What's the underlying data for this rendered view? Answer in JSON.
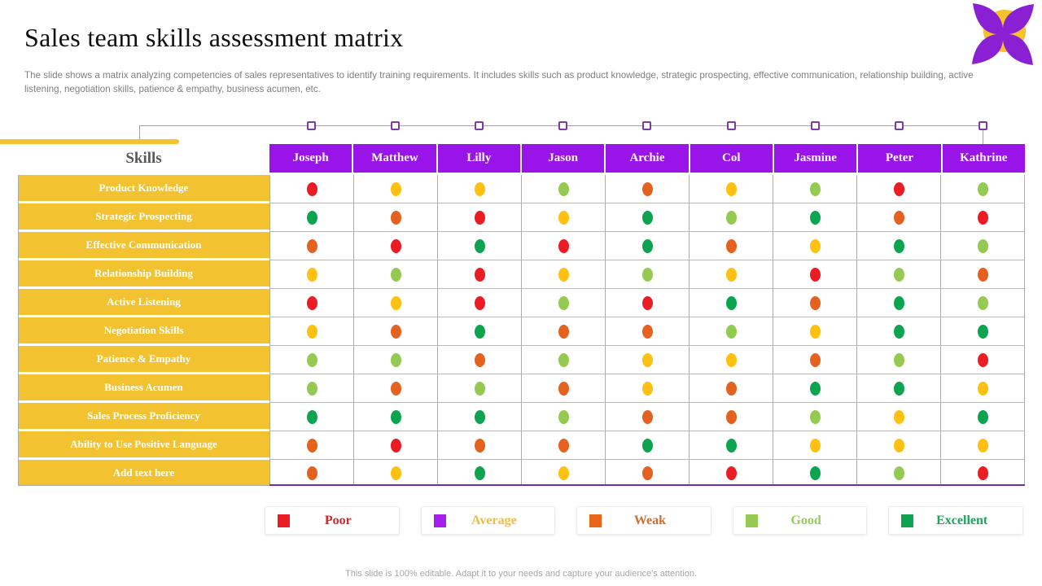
{
  "slide": {
    "title": "Sales team skills assessment matrix",
    "subtitle": "The slide shows a matrix analyzing competencies of sales representatives to identify training requirements. It includes skills such as product knowledge, strategic prospecting, effective communication, relationship building, active listening, negotiation skills, patience & empathy, business acumen, etc.",
    "footer": "This slide is 100% editable. Adapt it to your needs and capture your audience's attention."
  },
  "matrix": {
    "skills_header": "Skills"
  },
  "chart_data": {
    "type": "heatmap",
    "title": "Sales team skills assessment matrix",
    "columns": [
      "Joseph",
      "Matthew",
      "Lilly",
      "Jason",
      "Archie",
      "Col",
      "Jasmine",
      "Peter",
      "Kathrine"
    ],
    "rows": [
      "Product Knowledge",
      "Strategic Prospecting",
      "Effective Communication",
      "Relationship Building",
      "Active Listening",
      "Negotiation Skills",
      "Patience & Empathy",
      "Business Acumen",
      "Sales Process Proficiency",
      "Ability to Use Positive Language",
      "Add text here"
    ],
    "cell_colors": [
      [
        "red",
        "yellow",
        "yellow",
        "lightgreen",
        "orange",
        "yellow",
        "lightgreen",
        "red",
        "lightgreen"
      ],
      [
        "green",
        "orange",
        "red",
        "yellow",
        "green",
        "lightgreen",
        "green",
        "orange",
        "red"
      ],
      [
        "orange",
        "red",
        "green",
        "red",
        "green",
        "orange",
        "yellow",
        "green",
        "lightgreen"
      ],
      [
        "yellow",
        "lightgreen",
        "red",
        "yellow",
        "lightgreen",
        "yellow",
        "red",
        "lightgreen",
        "orange"
      ],
      [
        "red",
        "yellow",
        "red",
        "lightgreen",
        "red",
        "green",
        "orange",
        "green",
        "lightgreen"
      ],
      [
        "yellow",
        "orange",
        "green",
        "orange",
        "orange",
        "lightgreen",
        "yellow",
        "green",
        "green"
      ],
      [
        "lightgreen",
        "lightgreen",
        "orange",
        "lightgreen",
        "yellow",
        "yellow",
        "orange",
        "lightgreen",
        "red"
      ],
      [
        "lightgreen",
        "orange",
        "lightgreen",
        "orange",
        "yellow",
        "orange",
        "green",
        "green",
        "yellow"
      ],
      [
        "green",
        "green",
        "green",
        "lightgreen",
        "orange",
        "orange",
        "lightgreen",
        "yellow",
        "green"
      ],
      [
        "orange",
        "red",
        "orange",
        "orange",
        "green",
        "green",
        "yellow",
        "yellow",
        "yellow"
      ],
      [
        "orange",
        "yellow",
        "green",
        "yellow",
        "orange",
        "red",
        "green",
        "lightgreen",
        "red"
      ]
    ]
  },
  "legend": [
    {
      "label": "Poor",
      "swatch_color": "#EB1C24",
      "label_color": "#D0252B"
    },
    {
      "label": "Average",
      "swatch_color": "#A41EEC",
      "label_color": "#EFBD44"
    },
    {
      "label": "Weak",
      "swatch_color": "#E8661C",
      "label_color": "#CF6D2E"
    },
    {
      "label": "Good",
      "swatch_color": "#94CA52",
      "label_color": "#97CB59"
    },
    {
      "label": "Excellent",
      "swatch_color": "#0CA44E",
      "label_color": "#1CA35C"
    }
  ],
  "colors": {
    "red": "#EB1C24",
    "yellow": "#FEC011",
    "orange": "#E4611F",
    "lightgreen": "#94CA52",
    "green": "#0CA44E",
    "header_bg": "#9914E8",
    "skill_bg": "#F2C230",
    "bottom_line": "#7030A0"
  }
}
